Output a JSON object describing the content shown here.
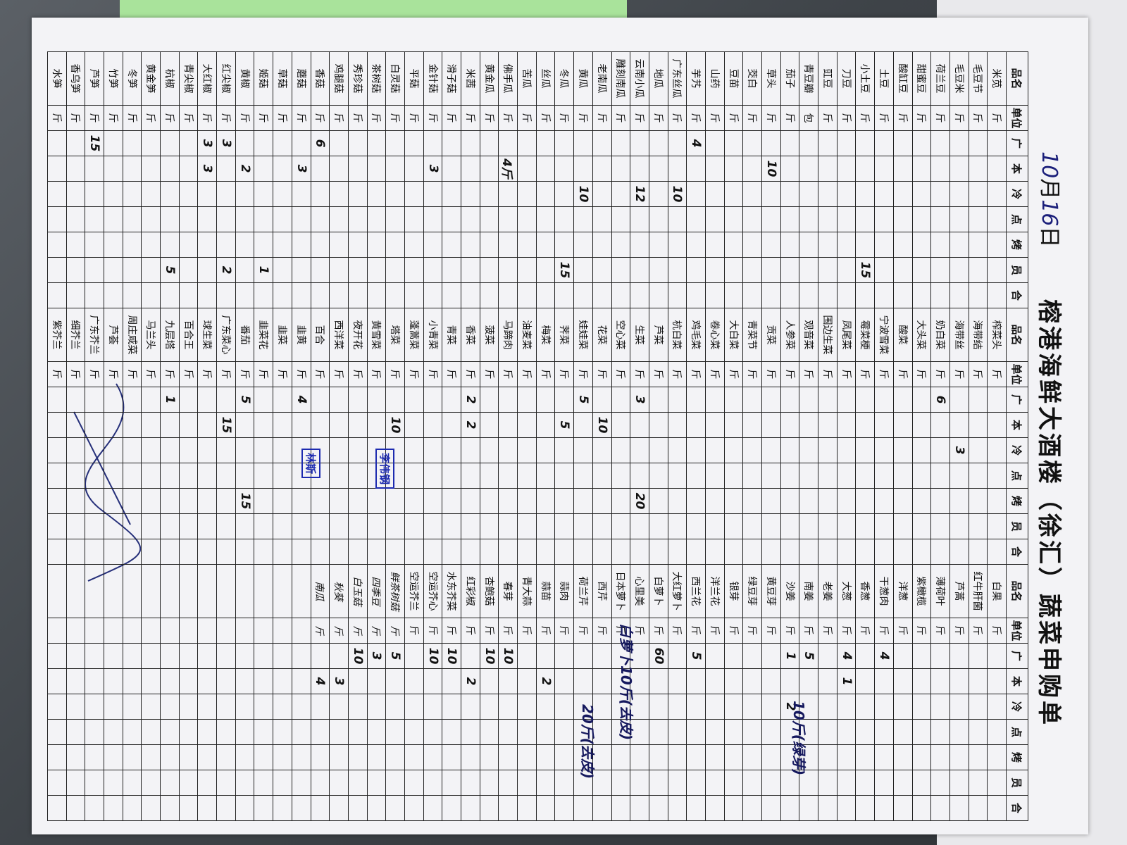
{
  "header": {
    "month": "10",
    "month_label": "月",
    "day": "16",
    "day_label": "日",
    "title": "榕港海鲜大酒楼（徐汇）蔬菜申购单"
  },
  "columns": [
    "品名",
    "单位",
    "广",
    "本",
    "冷",
    "点",
    "烤",
    "员",
    "合"
  ],
  "groups": [
    {
      "rows": [
        {
          "n": "米苋",
          "u": "斤"
        },
        {
          "n": "毛豆节",
          "u": "斤"
        },
        {
          "n": "毛豆米",
          "u": "斤"
        },
        {
          "n": "荷兰豆",
          "u": "斤"
        },
        {
          "n": "甜蜜豆",
          "u": "斤"
        },
        {
          "n": "酸缸豆",
          "u": "斤"
        },
        {
          "n": "土豆",
          "u": "斤"
        },
        {
          "n": "小土豆",
          "u": "斤",
          "q": {
            "7": "15"
          }
        },
        {
          "n": "刀豆",
          "u": "斤"
        },
        {
          "n": "豇豆",
          "u": "斤"
        },
        {
          "n": "青豆瓣",
          "u": "包"
        },
        {
          "n": "茄子",
          "u": "斤"
        },
        {
          "n": "草头",
          "u": "斤",
          "q": {
            "3": "10"
          }
        },
        {
          "n": "茭白",
          "u": "斤"
        },
        {
          "n": "豆苗",
          "u": "斤"
        },
        {
          "n": "山药",
          "u": "斤"
        },
        {
          "n": "芋艿",
          "u": "斤",
          "q": {
            "2": "4"
          }
        },
        {
          "n": "广东丝瓜",
          "u": "斤",
          "q": {
            "4": "10"
          }
        },
        {
          "n": "地瓜",
          "u": "斤"
        },
        {
          "n": "云南小瓜",
          "u": "斤",
          "q": {
            "4": "12"
          }
        },
        {
          "n": "雕刻南瓜",
          "u": "斤"
        },
        {
          "n": "老南瓜",
          "u": "斤"
        },
        {
          "n": "黄瓜",
          "u": "斤",
          "q": {
            "4": "10"
          }
        },
        {
          "n": "冬瓜",
          "u": "斤",
          "q": {
            "7": "15"
          }
        },
        {
          "n": "丝瓜",
          "u": "斤"
        },
        {
          "n": "苦瓜",
          "u": "斤"
        },
        {
          "n": "佛手瓜",
          "u": "斤",
          "q": {
            "3": "4斤"
          }
        },
        {
          "n": "黄金瓜",
          "u": "斤"
        },
        {
          "n": "米茜",
          "u": "斤"
        },
        {
          "n": "滑子菇",
          "u": "斤"
        },
        {
          "n": "金针菇",
          "u": "斤",
          "q": {
            "3": "3"
          }
        },
        {
          "n": "平菇",
          "u": "斤"
        },
        {
          "n": "白灵菇",
          "u": "斤"
        },
        {
          "n": "茶树菇",
          "u": "斤"
        },
        {
          "n": "秀珍菇",
          "u": "斤"
        },
        {
          "n": "鸡腿菇",
          "u": "斤"
        },
        {
          "n": "香菇",
          "u": "斤",
          "q": {
            "2": "6"
          }
        },
        {
          "n": "蘑菇",
          "u": "斤",
          "q": {
            "3": "3"
          }
        },
        {
          "n": "草菇",
          "u": "斤"
        },
        {
          "n": "姬菇",
          "u": "斤",
          "q": {
            "7": "1"
          }
        },
        {
          "n": "黄椒",
          "u": "斤",
          "q": {
            "3": "2"
          }
        },
        {
          "n": "红尖椒",
          "u": "斤",
          "q": {
            "2": "3",
            "7": "2"
          }
        },
        {
          "n": "大红椒",
          "u": "斤",
          "q": {
            "2": "3",
            "3": "3"
          }
        },
        {
          "n": "青尖椒",
          "u": "斤"
        },
        {
          "n": "杭椒",
          "u": "斤",
          "q": {
            "7": "5"
          }
        },
        {
          "n": "黄金笋",
          "u": "斤"
        },
        {
          "n": "冬笋",
          "u": "斤"
        },
        {
          "n": "竹笋",
          "u": "斤"
        },
        {
          "n": "芦笋",
          "u": "斤",
          "q": {
            "2": "15"
          }
        },
        {
          "n": "香乌笋",
          "u": "斤"
        },
        {
          "n": "水笋",
          "u": "斤"
        }
      ]
    },
    {
      "rows": [
        {
          "n": "榨菜头",
          "u": "斤"
        },
        {
          "n": "海带结",
          "u": "斤"
        },
        {
          "n": "海带丝",
          "u": "斤",
          "q": {
            "4": "3"
          }
        },
        {
          "n": "奶白菜",
          "u": "斤",
          "q": {
            "2": "6"
          }
        },
        {
          "n": "大头菜",
          "u": "斤"
        },
        {
          "n": "酸菜",
          "u": "斤"
        },
        {
          "n": "宁波雪菜",
          "u": "斤"
        },
        {
          "n": "霉菜梗",
          "u": "斤"
        },
        {
          "n": "凤尾菜",
          "u": "斤"
        },
        {
          "n": "围边生菜",
          "u": "斤"
        },
        {
          "n": "观音菜",
          "u": "斤"
        },
        {
          "n": "人参菜",
          "u": "斤"
        },
        {
          "n": "贡菜",
          "u": "斤"
        },
        {
          "n": "青菜节",
          "u": "斤"
        },
        {
          "n": "大白菜",
          "u": "斤"
        },
        {
          "n": "卷心菜",
          "u": "斤"
        },
        {
          "n": "鸡毛菜",
          "u": "斤"
        },
        {
          "n": "杭白菜",
          "u": "斤"
        },
        {
          "n": "芦菜",
          "u": "斤"
        },
        {
          "n": "生菜",
          "u": "斤",
          "q": {
            "2": "3",
            "6": "20"
          }
        },
        {
          "n": "空心菜",
          "u": "斤"
        },
        {
          "n": "花菜",
          "u": "斤",
          "q": {
            "3": "10"
          }
        },
        {
          "n": "娃娃菜",
          "u": "斤",
          "q": {
            "2": "5"
          }
        },
        {
          "n": "荠菜",
          "u": "斤",
          "q": {
            "3": "5"
          }
        },
        {
          "n": "梅菜",
          "u": "斤"
        },
        {
          "n": "油麦菜",
          "u": "斤"
        },
        {
          "n": "马蹄肉",
          "u": "斤"
        },
        {
          "n": "菠菜",
          "u": "斤"
        },
        {
          "n": "香菜",
          "u": "斤",
          "q": {
            "2": "2",
            "3": "2"
          }
        },
        {
          "n": "青菜",
          "u": "斤"
        },
        {
          "n": "小青菜",
          "u": "斤"
        },
        {
          "n": "蓬蒿菜",
          "u": "斤"
        },
        {
          "n": "塔菜",
          "u": "斤",
          "q": {
            "3": "10"
          }
        },
        {
          "n": "黄雪菜",
          "u": "斤"
        },
        {
          "n": "夜开花",
          "u": "斤"
        },
        {
          "n": "西洋菜",
          "u": "斤"
        },
        {
          "n": "百合",
          "u": "斤"
        },
        {
          "n": "韭黄",
          "u": "斤",
          "q": {
            "2": "4"
          }
        },
        {
          "n": "韭菜",
          "u": "斤"
        },
        {
          "n": "韭菜花",
          "u": "斤"
        },
        {
          "n": "番茄",
          "u": "斤",
          "q": {
            "2": "5",
            "6": "15"
          }
        },
        {
          "n": "广东菜心",
          "u": "斤",
          "q": {
            "3": "15"
          }
        },
        {
          "n": "球生菜",
          "u": "斤"
        },
        {
          "n": "百合王",
          "u": "斤"
        },
        {
          "n": "九层塔",
          "u": "斤",
          "q": {
            "2": "1"
          }
        },
        {
          "n": "马兰头",
          "u": "斤"
        },
        {
          "n": "周庄咸菜",
          "u": "斤"
        },
        {
          "n": "芦荟",
          "u": "斤"
        },
        {
          "n": "广东芥兰",
          "u": "斤"
        },
        {
          "n": "细芥兰",
          "u": "斤"
        },
        {
          "n": "紫芥兰",
          "u": "斤"
        }
      ]
    },
    {
      "rows": [
        {
          "n": "白果",
          "u": "斤"
        },
        {
          "n": "红牛肝菌",
          "u": "斤"
        },
        {
          "n": "芦蒿",
          "u": "斤"
        },
        {
          "n": "薄荷叶",
          "u": "斤"
        },
        {
          "n": "紫橄榄",
          "u": "斤"
        },
        {
          "n": "洋葱",
          "u": "斤"
        },
        {
          "n": "干葱肉",
          "u": "斤",
          "q": {
            "2": "4"
          }
        },
        {
          "n": "香葱",
          "u": "斤"
        },
        {
          "n": "大葱",
          "u": "斤",
          "q": {
            "2": "4",
            "3": "1"
          }
        },
        {
          "n": "老姜",
          "u": "斤"
        },
        {
          "n": "南姜",
          "u": "斤",
          "q": {
            "2": "5"
          }
        },
        {
          "n": "沙姜",
          "u": "斤",
          "q": {
            "2": "1",
            "4": "2"
          }
        },
        {
          "n": "黄豆芽",
          "u": "斤"
        },
        {
          "n": "绿豆芽",
          "u": "斤"
        },
        {
          "n": "银芽",
          "u": "斤"
        },
        {
          "n": "洋兰花",
          "u": "斤"
        },
        {
          "n": "西兰花",
          "u": "斤",
          "q": {
            "2": "5"
          }
        },
        {
          "n": "大红萝卜",
          "u": "斤"
        },
        {
          "n": "白萝卜",
          "u": "斤",
          "q": {
            "2": "60"
          }
        },
        {
          "n": "心里美",
          "u": "斤"
        },
        {
          "n": "日本萝卜",
          "u": "斤"
        },
        {
          "n": "西芹",
          "u": "斤"
        },
        {
          "n": "荷兰芹",
          "u": "斤"
        },
        {
          "n": "蒜肉",
          "u": "斤"
        },
        {
          "n": "蒜苗",
          "u": "斤",
          "q": {
            "3": "2"
          }
        },
        {
          "n": "青大蒜",
          "u": "斤"
        },
        {
          "n": "春芽",
          "u": "斤",
          "q": {
            "2": "10"
          }
        },
        {
          "n": "杏鲍菇",
          "u": "斤",
          "q": {
            "2": "10"
          }
        },
        {
          "n": "红彩椒",
          "u": "斤",
          "q": {
            "3": "2"
          }
        },
        {
          "n": "水东芥菜",
          "u": "斤",
          "q": {
            "2": "10"
          }
        },
        {
          "n": "空运芥心",
          "u": "斤",
          "q": {
            "2": "10"
          }
        },
        {
          "n": "空运芥兰",
          "u": "斤"
        }
      ],
      "extra_rows": [
        {
          "n": "鲜茶树菇",
          "u": "斤",
          "q": {
            "2": "5"
          }
        },
        {
          "n": "四季豆",
          "u": "斤",
          "q": {
            "2": "3"
          }
        },
        {
          "n": "白玉菇",
          "u": "斤",
          "q": {
            "2": "10"
          }
        },
        {
          "n": "秋葵",
          "u": "斤",
          "q": {
            "3": "3"
          }
        },
        {
          "n": "南瓜",
          "u": "斤",
          "q": {
            "3": "4"
          }
        }
      ]
    }
  ],
  "notes": [
    "白萝卜10斤(去皮)",
    "20斤(去皮)",
    "10斤(绿芽)"
  ],
  "stamps": [
    "李伟钢",
    "林斯"
  ]
}
